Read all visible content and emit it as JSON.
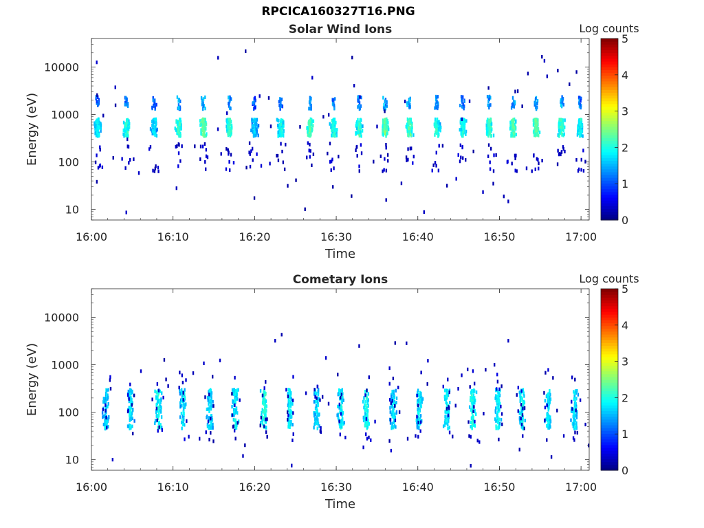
{
  "figure": {
    "title": "RPCICA160327T16.PNG"
  },
  "colormap": [
    "#00007f",
    "#0000ff",
    "#007fff",
    "#00ffff",
    "#7fff7f",
    "#ffff00",
    "#ff7f00",
    "#ff0000",
    "#7f0000"
  ],
  "chart_data": [
    {
      "type": "heatmap",
      "title": "Solar Wind Ions",
      "xlabel": "Time",
      "ylabel": "Energy (eV)",
      "yscale": "log",
      "xlim": [
        "16:00",
        "17:01"
      ],
      "ylim": [
        6,
        40000
      ],
      "x_ticks": [
        "16:00",
        "16:10",
        "16:20",
        "16:30",
        "16:40",
        "16:50",
        "17:00"
      ],
      "y_ticks": [
        10,
        100,
        1000,
        10000
      ],
      "y_tick_labels": [
        "10",
        "100",
        "1000",
        "10000"
      ],
      "colorbar": {
        "label": "Log counts",
        "range": [
          0,
          5
        ],
        "ticks": [
          "0",
          "1",
          "2",
          "3",
          "4",
          "5"
        ]
      },
      "grid": false,
      "bursts_minutes": [
        0.8,
        4.3,
        7.7,
        10.7,
        13.7,
        16.9,
        20.0,
        23.2,
        26.8,
        29.7,
        32.8,
        36.0,
        39.0,
        42.3,
        45.5,
        48.8,
        51.7,
        54.5,
        57.6,
        59.9
      ],
      "bursts_log_count_peak": [
        1.9,
        2.1,
        1.8,
        2.2,
        2.4,
        2.2,
        1.7,
        2.0,
        2.3,
        2.1,
        2.2,
        2.4,
        2.3,
        2.1,
        2.0,
        2.2,
        2.3,
        2.4,
        2.2,
        2.0
      ],
      "main_band_eV": [
        350,
        800
      ],
      "upper_band_eV": [
        1300,
        2400
      ]
    },
    {
      "type": "heatmap",
      "title": "Cometary Ions",
      "xlabel": "Time",
      "ylabel": "Energy (eV)",
      "yscale": "log",
      "xlim": [
        "16:00",
        "17:01"
      ],
      "ylim": [
        6,
        40000
      ],
      "x_ticks": [
        "16:00",
        "16:10",
        "16:20",
        "16:30",
        "16:40",
        "16:50",
        "17:00"
      ],
      "y_ticks": [
        10,
        100,
        1000,
        10000
      ],
      "y_tick_labels": [
        "10",
        "100",
        "1000",
        "10000"
      ],
      "colorbar": {
        "label": "Log counts",
        "range": [
          0,
          5
        ],
        "ticks": [
          "0",
          "1",
          "2",
          "3",
          "4",
          "5"
        ]
      },
      "grid": false,
      "bursts_minutes": [
        1.8,
        4.8,
        8.2,
        11.2,
        14.5,
        17.6,
        21.2,
        24.3,
        27.6,
        30.6,
        33.7,
        37.0,
        40.2,
        43.6,
        46.7,
        49.8,
        52.8,
        56.0,
        59.2
      ],
      "bursts_log_count_peak": [
        1.7,
        1.8,
        2.0,
        1.8,
        1.8,
        1.9,
        2.1,
        1.9,
        1.8,
        1.9,
        2.0,
        1.8,
        1.9,
        1.9,
        2.0,
        1.9,
        1.9,
        1.8,
        1.8
      ],
      "main_band_eV": [
        45,
        300
      ]
    }
  ]
}
